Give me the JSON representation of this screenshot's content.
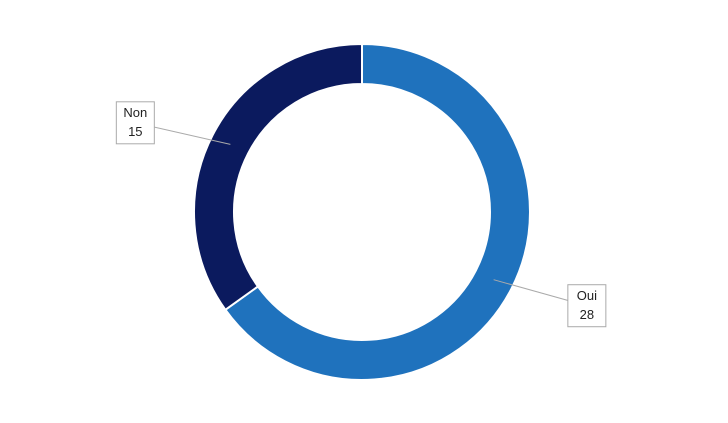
{
  "chart_data": {
    "type": "donut",
    "categories": [
      "Oui",
      "Non"
    ],
    "values": [
      28,
      15
    ],
    "colors": [
      "#1f72bd",
      "#0b1a5e"
    ]
  }
}
